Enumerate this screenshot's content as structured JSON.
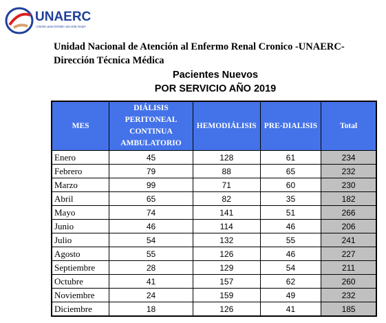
{
  "header": {
    "logo": "UNAERC",
    "tagline": "¡Unidos para brindar una vida mejor!",
    "org": "Unidad Nacional de Atención al Enfermo Renal Cronico -UNAERC-",
    "dept": "Dirección Técnica Médica"
  },
  "title": {
    "line1": "Pacientes Nuevos",
    "line2": "POR SERVICIO AÑO 2019"
  },
  "table": {
    "columns": [
      "MES",
      "DIÁLISIS PERITONEAL CONTINUA AMBULATORIO",
      "HEMODIÁLISIS",
      "PRE-DIALISIS",
      "Total"
    ],
    "rows": [
      [
        "Enero",
        45,
        128,
        61,
        234
      ],
      [
        "Febrero",
        79,
        88,
        65,
        232
      ],
      [
        "Marzo",
        99,
        71,
        60,
        230
      ],
      [
        "Abril",
        65,
        82,
        35,
        182
      ],
      [
        "Mayo",
        74,
        141,
        51,
        266
      ],
      [
        "Junio",
        46,
        114,
        46,
        206
      ],
      [
        "Julio",
        54,
        132,
        55,
        241
      ],
      [
        "Agosto",
        55,
        126,
        46,
        227
      ],
      [
        "Septiembre",
        28,
        129,
        54,
        211
      ],
      [
        "Octubre",
        41,
        157,
        62,
        260
      ],
      [
        "Noviembre",
        24,
        159,
        49,
        232
      ],
      [
        "Diciembre",
        18,
        126,
        41,
        185
      ]
    ]
  }
}
